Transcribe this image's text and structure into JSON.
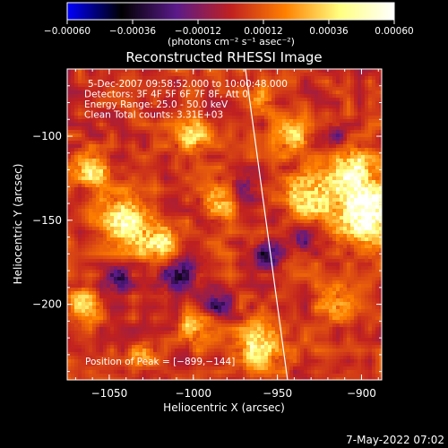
{
  "chart_data": {
    "type": "heatmap",
    "title": "Reconstructed RHESSI Image",
    "xlabel": "Heliocentric X (arcsec)",
    "ylabel": "Heliocentric Y (arcsec)",
    "xlim": [
      -1075,
      -888
    ],
    "ylim": [
      -245,
      -60
    ],
    "x_ticks": [
      -1050,
      -1000,
      -950,
      -900
    ],
    "x_tick_labels": [
      "−1050",
      "−1000",
      "−950",
      "−900"
    ],
    "y_ticks": [
      -100,
      -150,
      -200
    ],
    "y_tick_labels": [
      "−100",
      "−150",
      "−200"
    ],
    "colorbar": {
      "min": -0.0006,
      "max": 0.0006,
      "ticks": [
        -0.0006,
        -0.00036,
        -0.00012,
        0.00012,
        0.00036,
        0.0006
      ],
      "tick_labels": [
        "−0.00060",
        "−0.00036",
        "−0.00012",
        "0.00012",
        "0.00036",
        "0.00060"
      ],
      "unit_label": "(photons cm⁻² s⁻¹ asec⁻²)",
      "colors": [
        "#0000ff",
        "#000000",
        "#5a1a8a",
        "#c02020",
        "#ff8000",
        "#ffff80",
        "#ffffff"
      ]
    },
    "annotations": [
      "5-Dec-2007 09:58:52.000 to 10:00:48.000",
      "Detectors: 3F 4F 5F 6F 7F 8F, Att 0",
      "Energy Range: 25.0 - 50.0 keV",
      "Clean     Total counts: 3.31E+03"
    ],
    "peak_label": "Position of Peak = [−899,−144]",
    "peak": [
      -899,
      -144
    ],
    "limb_line": {
      "x": [
        -969,
        -944
      ],
      "y": [
        -60,
        -245
      ]
    },
    "hot_spots": [
      {
        "x": -896,
        "y": -145,
        "r": 18,
        "v": 0.00062
      },
      {
        "x": -905,
        "y": -120,
        "r": 12,
        "v": 0.0004
      },
      {
        "x": -930,
        "y": -135,
        "r": 14,
        "v": 0.00042
      },
      {
        "x": -940,
        "y": -100,
        "r": 10,
        "v": 0.0003
      },
      {
        "x": -1040,
        "y": -150,
        "r": 14,
        "v": 0.00045
      },
      {
        "x": -1020,
        "y": -165,
        "r": 12,
        "v": 0.0004
      },
      {
        "x": -1060,
        "y": -120,
        "r": 10,
        "v": 0.00035
      },
      {
        "x": -1000,
        "y": -100,
        "r": 10,
        "v": 0.0003
      },
      {
        "x": -985,
        "y": -140,
        "r": 10,
        "v": 0.00028
      },
      {
        "x": -960,
        "y": -225,
        "r": 14,
        "v": 0.00035
      },
      {
        "x": -1000,
        "y": -215,
        "r": 10,
        "v": 0.00025
      },
      {
        "x": -915,
        "y": -200,
        "r": 10,
        "v": 0.00025
      },
      {
        "x": -1065,
        "y": -200,
        "r": 10,
        "v": 0.00028
      },
      {
        "x": -960,
        "y": -80,
        "r": 8,
        "v": 0.00022
      },
      {
        "x": -1030,
        "y": -230,
        "r": 8,
        "v": 0.00022
      },
      {
        "x": -1010,
        "y": -180,
        "r": 12,
        "v": -0.00035
      },
      {
        "x": -1045,
        "y": -185,
        "r": 9,
        "v": -0.00025
      },
      {
        "x": -955,
        "y": -170,
        "r": 9,
        "v": -0.0003
      },
      {
        "x": -985,
        "y": -200,
        "r": 8,
        "v": -0.00025
      },
      {
        "x": -935,
        "y": -160,
        "r": 8,
        "v": -0.00025
      },
      {
        "x": -915,
        "y": -100,
        "r": 8,
        "v": -0.0002
      },
      {
        "x": -970,
        "y": -130,
        "r": 8,
        "v": -0.00022
      }
    ]
  },
  "footer": {
    "timestamp": "7-May-2022 07:02"
  }
}
